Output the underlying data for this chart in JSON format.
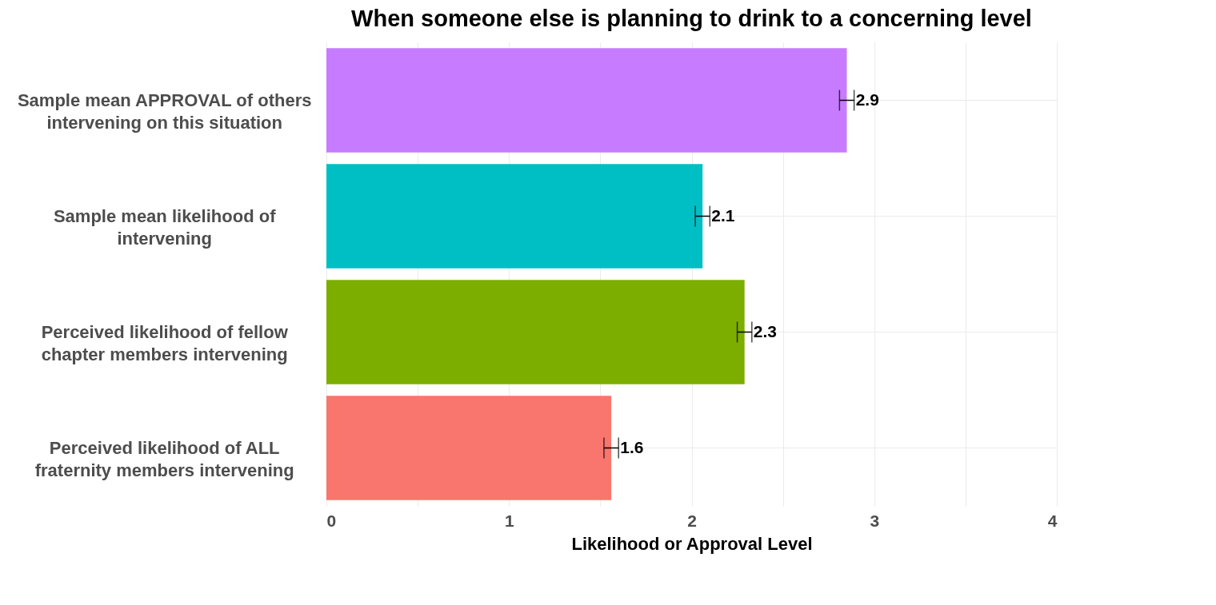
{
  "chart_data": {
    "type": "bar",
    "orientation": "horizontal",
    "title": "When someone else is planning to drink to a concerning level",
    "xlabel": "Likelihood or Approval Level",
    "categories": [
      "Sample mean APPROVAL of others intervening on this situation",
      "Sample mean likelihood of intervening",
      "Perceived likelihood of fellow chapter members intervening",
      "Perceived likelihood of ALL fraternity members intervening"
    ],
    "values": [
      2.85,
      2.06,
      2.29,
      1.56
    ],
    "errors": [
      0.04,
      0.04,
      0.04,
      0.04
    ],
    "value_labels": [
      "2.9",
      "2.1",
      "2.3",
      "1.6"
    ],
    "colors": [
      "#c77cff",
      "#00bfc4",
      "#7cae00",
      "#f8766d"
    ],
    "xlim": [
      0,
      4
    ],
    "xticks": [
      0,
      {
        "value": 0.5,
        "label": null
      },
      1,
      {
        "value": 1.5,
        "label": null
      },
      2,
      {
        "value": 2.5,
        "label": null
      },
      3,
      {
        "value": 3.5,
        "label": null
      },
      4
    ],
    "grid": true
  }
}
